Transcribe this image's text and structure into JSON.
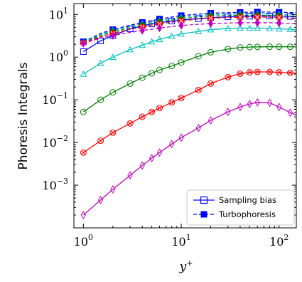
{
  "chart_data": {
    "type": "line",
    "xscale": "log",
    "yscale": "log",
    "xlim": [
      0.8,
      150
    ],
    "ylim": [
      0.0001,
      18
    ],
    "xlabel": "y+",
    "ylabel": "Phoresis Integrals",
    "xticks": [
      {
        "value": 1,
        "base": "10",
        "exp": "0"
      },
      {
        "value": 10,
        "base": "10",
        "exp": "1"
      },
      {
        "value": 100,
        "base": "10",
        "exp": "2"
      }
    ],
    "yticks": [
      {
        "value": 0.001,
        "base": "10",
        "exp": "−3"
      },
      {
        "value": 0.01,
        "base": "10",
        "exp": "−2"
      },
      {
        "value": 0.1,
        "base": "10",
        "exp": "−1"
      },
      {
        "value": 1,
        "base": "10",
        "exp": "0"
      },
      {
        "value": 10,
        "base": "10",
        "exp": "1"
      }
    ],
    "grid": false,
    "legend": {
      "placement": "bottom-right",
      "entries": [
        {
          "label": "Sampling bias",
          "color": "#0000ff",
          "style": "solid",
          "marker": "square"
        },
        {
          "label": "Turbophoresis",
          "color": "#0000ff",
          "style": "dashed",
          "marker": "filled-square"
        }
      ]
    },
    "marker_x": [
      1,
      1.5,
      2,
      3,
      4,
      5,
      6,
      8,
      10,
      15,
      20,
      30,
      40,
      50,
      60,
      80,
      100,
      130
    ],
    "series": [
      {
        "group": "sampling",
        "color": "#0000ff",
        "marker": "square",
        "x": [
          1,
          1.5,
          2,
          3,
          4,
          5,
          6,
          8,
          10,
          15,
          20,
          30,
          40,
          50,
          60,
          80,
          100,
          130,
          150
        ],
        "y": [
          1.35,
          2.4,
          3.2,
          4.6,
          5.4,
          6.0,
          6.4,
          7.0,
          7.4,
          8.0,
          8.4,
          8.8,
          9.0,
          9.1,
          9.2,
          9.2,
          9.1,
          9.0,
          8.8
        ]
      },
      {
        "group": "sampling",
        "color": "#00bfbf",
        "marker": "triangle",
        "x": [
          1,
          1.5,
          2,
          3,
          4,
          5,
          6,
          8,
          10,
          15,
          20,
          30,
          40,
          50,
          60,
          80,
          100,
          130,
          150
        ],
        "y": [
          0.4,
          0.72,
          1.0,
          1.5,
          1.9,
          2.3,
          2.6,
          3.1,
          3.5,
          4.0,
          4.4,
          4.7,
          4.8,
          4.8,
          4.8,
          4.7,
          4.6,
          4.5,
          4.4
        ]
      },
      {
        "group": "sampling",
        "color": "#008000",
        "marker": "circle",
        "x": [
          1,
          1.5,
          2,
          3,
          4,
          5,
          6,
          8,
          10,
          15,
          20,
          30,
          40,
          50,
          60,
          80,
          100,
          130,
          150
        ],
        "y": [
          0.052,
          0.1,
          0.15,
          0.24,
          0.33,
          0.42,
          0.5,
          0.62,
          0.75,
          1.05,
          1.3,
          1.55,
          1.68,
          1.72,
          1.74,
          1.75,
          1.75,
          1.75,
          1.74
        ]
      },
      {
        "group": "sampling",
        "color": "#ff0000",
        "marker": "x-circle",
        "x": [
          1,
          1.5,
          2,
          3,
          4,
          5,
          6,
          8,
          10,
          15,
          20,
          30,
          40,
          50,
          60,
          80,
          100,
          130,
          150
        ],
        "y": [
          0.0058,
          0.011,
          0.017,
          0.028,
          0.04,
          0.052,
          0.064,
          0.087,
          0.11,
          0.17,
          0.24,
          0.34,
          0.41,
          0.44,
          0.45,
          0.45,
          0.44,
          0.43,
          0.42
        ]
      },
      {
        "group": "sampling",
        "color": "#bf00bf",
        "marker": "diamond",
        "x": [
          1,
          1.5,
          2,
          3,
          4,
          5,
          6,
          8,
          10,
          15,
          20,
          30,
          40,
          50,
          60,
          80,
          100,
          130,
          150
        ],
        "y": [
          0.0002,
          0.00045,
          0.0008,
          0.0017,
          0.0029,
          0.0043,
          0.0058,
          0.0092,
          0.013,
          0.022,
          0.033,
          0.052,
          0.068,
          0.08,
          0.087,
          0.085,
          0.068,
          0.05,
          0.044
        ]
      },
      {
        "group": "turbophoresis",
        "color": "#0000ff",
        "marker": "filled-square",
        "x": [
          1,
          1.5,
          2,
          3,
          4,
          5,
          6,
          8,
          10,
          15,
          20,
          30,
          40,
          50,
          60,
          80,
          100,
          130,
          150
        ],
        "y": [
          2.3,
          3.6,
          4.4,
          5.6,
          6.5,
          7.2,
          7.8,
          8.7,
          9.4,
          10.2,
          10.7,
          11.0,
          11.2,
          11.3,
          11.4,
          11.4,
          11.3,
          11.1,
          11.0
        ]
      },
      {
        "group": "turbophoresis",
        "color": "#00bfbf",
        "marker": "filled-triangle",
        "x": [
          1,
          1.5,
          2,
          3,
          4,
          5,
          6,
          8,
          10,
          15,
          20,
          30,
          40,
          50,
          60,
          80,
          100,
          130,
          150
        ],
        "y": [
          2.25,
          3.4,
          4.2,
          5.3,
          6.1,
          6.7,
          7.2,
          8.0,
          8.7,
          9.5,
          9.9,
          10.2,
          10.3,
          10.4,
          10.4,
          10.3,
          10.2,
          10.0,
          9.9
        ]
      },
      {
        "group": "turbophoresis",
        "color": "#008000",
        "marker": "filled-circle",
        "x": [
          1,
          1.5,
          2,
          3,
          4,
          5,
          6,
          8,
          10,
          15,
          20,
          30,
          40,
          50,
          60,
          80,
          100,
          130,
          150
        ],
        "y": [
          2.2,
          3.2,
          3.9,
          4.9,
          5.6,
          6.2,
          6.7,
          7.4,
          8.0,
          8.8,
          9.2,
          9.5,
          9.6,
          9.6,
          9.6,
          9.5,
          9.4,
          9.2,
          9.1
        ]
      },
      {
        "group": "turbophoresis",
        "color": "#ff0000",
        "marker": "filled-x-circle",
        "x": [
          1,
          1.5,
          2,
          3,
          4,
          5,
          6,
          8,
          10,
          15,
          20,
          30,
          40,
          50,
          60,
          80,
          100,
          130,
          150
        ],
        "y": [
          2.15,
          3.0,
          3.6,
          4.5,
          5.1,
          5.6,
          6.0,
          6.6,
          7.1,
          7.8,
          8.2,
          8.5,
          8.6,
          8.7,
          8.7,
          8.6,
          8.5,
          8.3,
          8.2
        ]
      },
      {
        "group": "turbophoresis",
        "color": "#bf00bf",
        "marker": "filled-diamond",
        "x": [
          1,
          1.5,
          2,
          3,
          4,
          5,
          6,
          8,
          10,
          15,
          20,
          30,
          40,
          50,
          60,
          80,
          100,
          130,
          150
        ],
        "y": [
          2.1,
          2.8,
          3.2,
          3.8,
          4.2,
          4.5,
          4.8,
          5.2,
          5.5,
          5.9,
          6.1,
          6.3,
          6.4,
          6.4,
          6.4,
          6.4,
          6.3,
          6.2,
          6.1
        ]
      }
    ]
  }
}
